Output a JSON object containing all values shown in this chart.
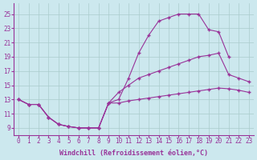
{
  "bg_color": "#cce8ee",
  "line_color": "#993399",
  "grid_color": "#aacccc",
  "xlabel": "Windchill (Refroidissement éolien,°C)",
  "xlabel_fontsize": 6.0,
  "tick_fontsize": 5.5,
  "xlim": [
    -0.5,
    23.5
  ],
  "ylim": [
    8.0,
    26.5
  ],
  "yticks": [
    9,
    11,
    13,
    15,
    17,
    19,
    21,
    23,
    25
  ],
  "xticks": [
    0,
    1,
    2,
    3,
    4,
    5,
    6,
    7,
    8,
    9,
    10,
    11,
    12,
    13,
    14,
    15,
    16,
    17,
    18,
    19,
    20,
    21,
    22,
    23
  ],
  "series1_x": [
    0,
    1,
    2,
    3,
    4,
    5,
    6,
    7,
    8,
    9,
    10,
    11,
    12,
    13,
    14,
    15,
    16,
    17,
    18,
    19,
    20,
    21,
    22,
    23
  ],
  "series1_y": [
    13.0,
    12.3,
    12.3,
    10.5,
    9.5,
    9.2,
    9.0,
    9.0,
    9.0,
    12.5,
    13.0,
    16.0,
    19.5,
    22.0,
    24.0,
    24.5,
    25.0,
    25.0,
    25.0,
    22.8,
    22.5,
    19.0,
    null,
    null
  ],
  "series2_x": [
    0,
    1,
    2,
    3,
    4,
    5,
    6,
    7,
    8,
    9,
    10,
    11,
    12,
    13,
    14,
    15,
    16,
    17,
    18,
    19,
    20,
    21,
    22,
    23
  ],
  "series2_y": [
    13.0,
    12.3,
    12.3,
    10.5,
    9.5,
    9.2,
    9.0,
    9.0,
    9.0,
    12.5,
    14.0,
    15.0,
    16.0,
    16.5,
    17.0,
    17.5,
    18.0,
    18.5,
    19.0,
    19.2,
    19.5,
    16.5,
    16.0,
    15.5
  ],
  "series3_x": [
    0,
    1,
    2,
    3,
    4,
    5,
    6,
    7,
    8,
    9,
    10,
    11,
    12,
    13,
    14,
    15,
    16,
    17,
    18,
    19,
    20,
    21,
    22,
    23
  ],
  "series3_y": [
    13.0,
    12.3,
    12.3,
    10.5,
    9.5,
    9.2,
    9.0,
    9.0,
    9.0,
    12.5,
    12.5,
    12.8,
    13.0,
    13.2,
    13.4,
    13.6,
    13.8,
    14.0,
    14.2,
    14.4,
    14.6,
    14.5,
    14.3,
    14.0
  ]
}
